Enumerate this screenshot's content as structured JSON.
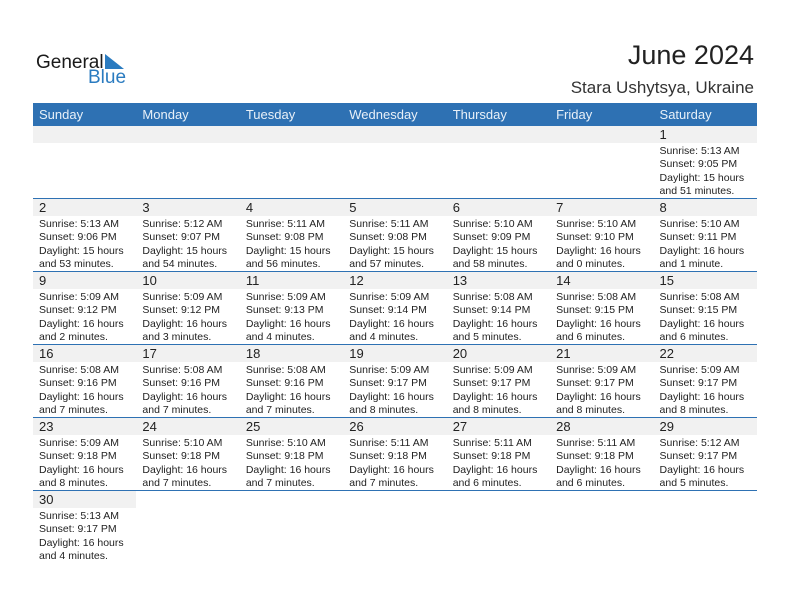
{
  "logo": {
    "general": "General",
    "blue": "Blue"
  },
  "title": "June 2024",
  "location": "Stara Ushytsya, Ukraine",
  "colors": {
    "header": "#2e71b3",
    "day_band": "#f1f1f1"
  },
  "weekdays": [
    "Sunday",
    "Monday",
    "Tuesday",
    "Wednesday",
    "Thursday",
    "Friday",
    "Saturday"
  ],
  "first_weekday_offset": 6,
  "days": [
    {
      "d": "1",
      "rise": "Sunrise: 5:13 AM",
      "set": "Sunset: 9:05 PM",
      "dl1": "Daylight: 15 hours",
      "dl2": "and 51 minutes."
    },
    {
      "d": "2",
      "rise": "Sunrise: 5:13 AM",
      "set": "Sunset: 9:06 PM",
      "dl1": "Daylight: 15 hours",
      "dl2": "and 53 minutes."
    },
    {
      "d": "3",
      "rise": "Sunrise: 5:12 AM",
      "set": "Sunset: 9:07 PM",
      "dl1": "Daylight: 15 hours",
      "dl2": "and 54 minutes."
    },
    {
      "d": "4",
      "rise": "Sunrise: 5:11 AM",
      "set": "Sunset: 9:08 PM",
      "dl1": "Daylight: 15 hours",
      "dl2": "and 56 minutes."
    },
    {
      "d": "5",
      "rise": "Sunrise: 5:11 AM",
      "set": "Sunset: 9:08 PM",
      "dl1": "Daylight: 15 hours",
      "dl2": "and 57 minutes."
    },
    {
      "d": "6",
      "rise": "Sunrise: 5:10 AM",
      "set": "Sunset: 9:09 PM",
      "dl1": "Daylight: 15 hours",
      "dl2": "and 58 minutes."
    },
    {
      "d": "7",
      "rise": "Sunrise: 5:10 AM",
      "set": "Sunset: 9:10 PM",
      "dl1": "Daylight: 16 hours",
      "dl2": "and 0 minutes."
    },
    {
      "d": "8",
      "rise": "Sunrise: 5:10 AM",
      "set": "Sunset: 9:11 PM",
      "dl1": "Daylight: 16 hours",
      "dl2": "and 1 minute."
    },
    {
      "d": "9",
      "rise": "Sunrise: 5:09 AM",
      "set": "Sunset: 9:12 PM",
      "dl1": "Daylight: 16 hours",
      "dl2": "and 2 minutes."
    },
    {
      "d": "10",
      "rise": "Sunrise: 5:09 AM",
      "set": "Sunset: 9:12 PM",
      "dl1": "Daylight: 16 hours",
      "dl2": "and 3 minutes."
    },
    {
      "d": "11",
      "rise": "Sunrise: 5:09 AM",
      "set": "Sunset: 9:13 PM",
      "dl1": "Daylight: 16 hours",
      "dl2": "and 4 minutes."
    },
    {
      "d": "12",
      "rise": "Sunrise: 5:09 AM",
      "set": "Sunset: 9:14 PM",
      "dl1": "Daylight: 16 hours",
      "dl2": "and 4 minutes."
    },
    {
      "d": "13",
      "rise": "Sunrise: 5:08 AM",
      "set": "Sunset: 9:14 PM",
      "dl1": "Daylight: 16 hours",
      "dl2": "and 5 minutes."
    },
    {
      "d": "14",
      "rise": "Sunrise: 5:08 AM",
      "set": "Sunset: 9:15 PM",
      "dl1": "Daylight: 16 hours",
      "dl2": "and 6 minutes."
    },
    {
      "d": "15",
      "rise": "Sunrise: 5:08 AM",
      "set": "Sunset: 9:15 PM",
      "dl1": "Daylight: 16 hours",
      "dl2": "and 6 minutes."
    },
    {
      "d": "16",
      "rise": "Sunrise: 5:08 AM",
      "set": "Sunset: 9:16 PM",
      "dl1": "Daylight: 16 hours",
      "dl2": "and 7 minutes."
    },
    {
      "d": "17",
      "rise": "Sunrise: 5:08 AM",
      "set": "Sunset: 9:16 PM",
      "dl1": "Daylight: 16 hours",
      "dl2": "and 7 minutes."
    },
    {
      "d": "18",
      "rise": "Sunrise: 5:08 AM",
      "set": "Sunset: 9:16 PM",
      "dl1": "Daylight: 16 hours",
      "dl2": "and 7 minutes."
    },
    {
      "d": "19",
      "rise": "Sunrise: 5:09 AM",
      "set": "Sunset: 9:17 PM",
      "dl1": "Daylight: 16 hours",
      "dl2": "and 8 minutes."
    },
    {
      "d": "20",
      "rise": "Sunrise: 5:09 AM",
      "set": "Sunset: 9:17 PM",
      "dl1": "Daylight: 16 hours",
      "dl2": "and 8 minutes."
    },
    {
      "d": "21",
      "rise": "Sunrise: 5:09 AM",
      "set": "Sunset: 9:17 PM",
      "dl1": "Daylight: 16 hours",
      "dl2": "and 8 minutes."
    },
    {
      "d": "22",
      "rise": "Sunrise: 5:09 AM",
      "set": "Sunset: 9:17 PM",
      "dl1": "Daylight: 16 hours",
      "dl2": "and 8 minutes."
    },
    {
      "d": "23",
      "rise": "Sunrise: 5:09 AM",
      "set": "Sunset: 9:18 PM",
      "dl1": "Daylight: 16 hours",
      "dl2": "and 8 minutes."
    },
    {
      "d": "24",
      "rise": "Sunrise: 5:10 AM",
      "set": "Sunset: 9:18 PM",
      "dl1": "Daylight: 16 hours",
      "dl2": "and 7 minutes."
    },
    {
      "d": "25",
      "rise": "Sunrise: 5:10 AM",
      "set": "Sunset: 9:18 PM",
      "dl1": "Daylight: 16 hours",
      "dl2": "and 7 minutes."
    },
    {
      "d": "26",
      "rise": "Sunrise: 5:11 AM",
      "set": "Sunset: 9:18 PM",
      "dl1": "Daylight: 16 hours",
      "dl2": "and 7 minutes."
    },
    {
      "d": "27",
      "rise": "Sunrise: 5:11 AM",
      "set": "Sunset: 9:18 PM",
      "dl1": "Daylight: 16 hours",
      "dl2": "and 6 minutes."
    },
    {
      "d": "28",
      "rise": "Sunrise: 5:11 AM",
      "set": "Sunset: 9:18 PM",
      "dl1": "Daylight: 16 hours",
      "dl2": "and 6 minutes."
    },
    {
      "d": "29",
      "rise": "Sunrise: 5:12 AM",
      "set": "Sunset: 9:17 PM",
      "dl1": "Daylight: 16 hours",
      "dl2": "and 5 minutes."
    },
    {
      "d": "30",
      "rise": "Sunrise: 5:13 AM",
      "set": "Sunset: 9:17 PM",
      "dl1": "Daylight: 16 hours",
      "dl2": "and 4 minutes."
    }
  ]
}
